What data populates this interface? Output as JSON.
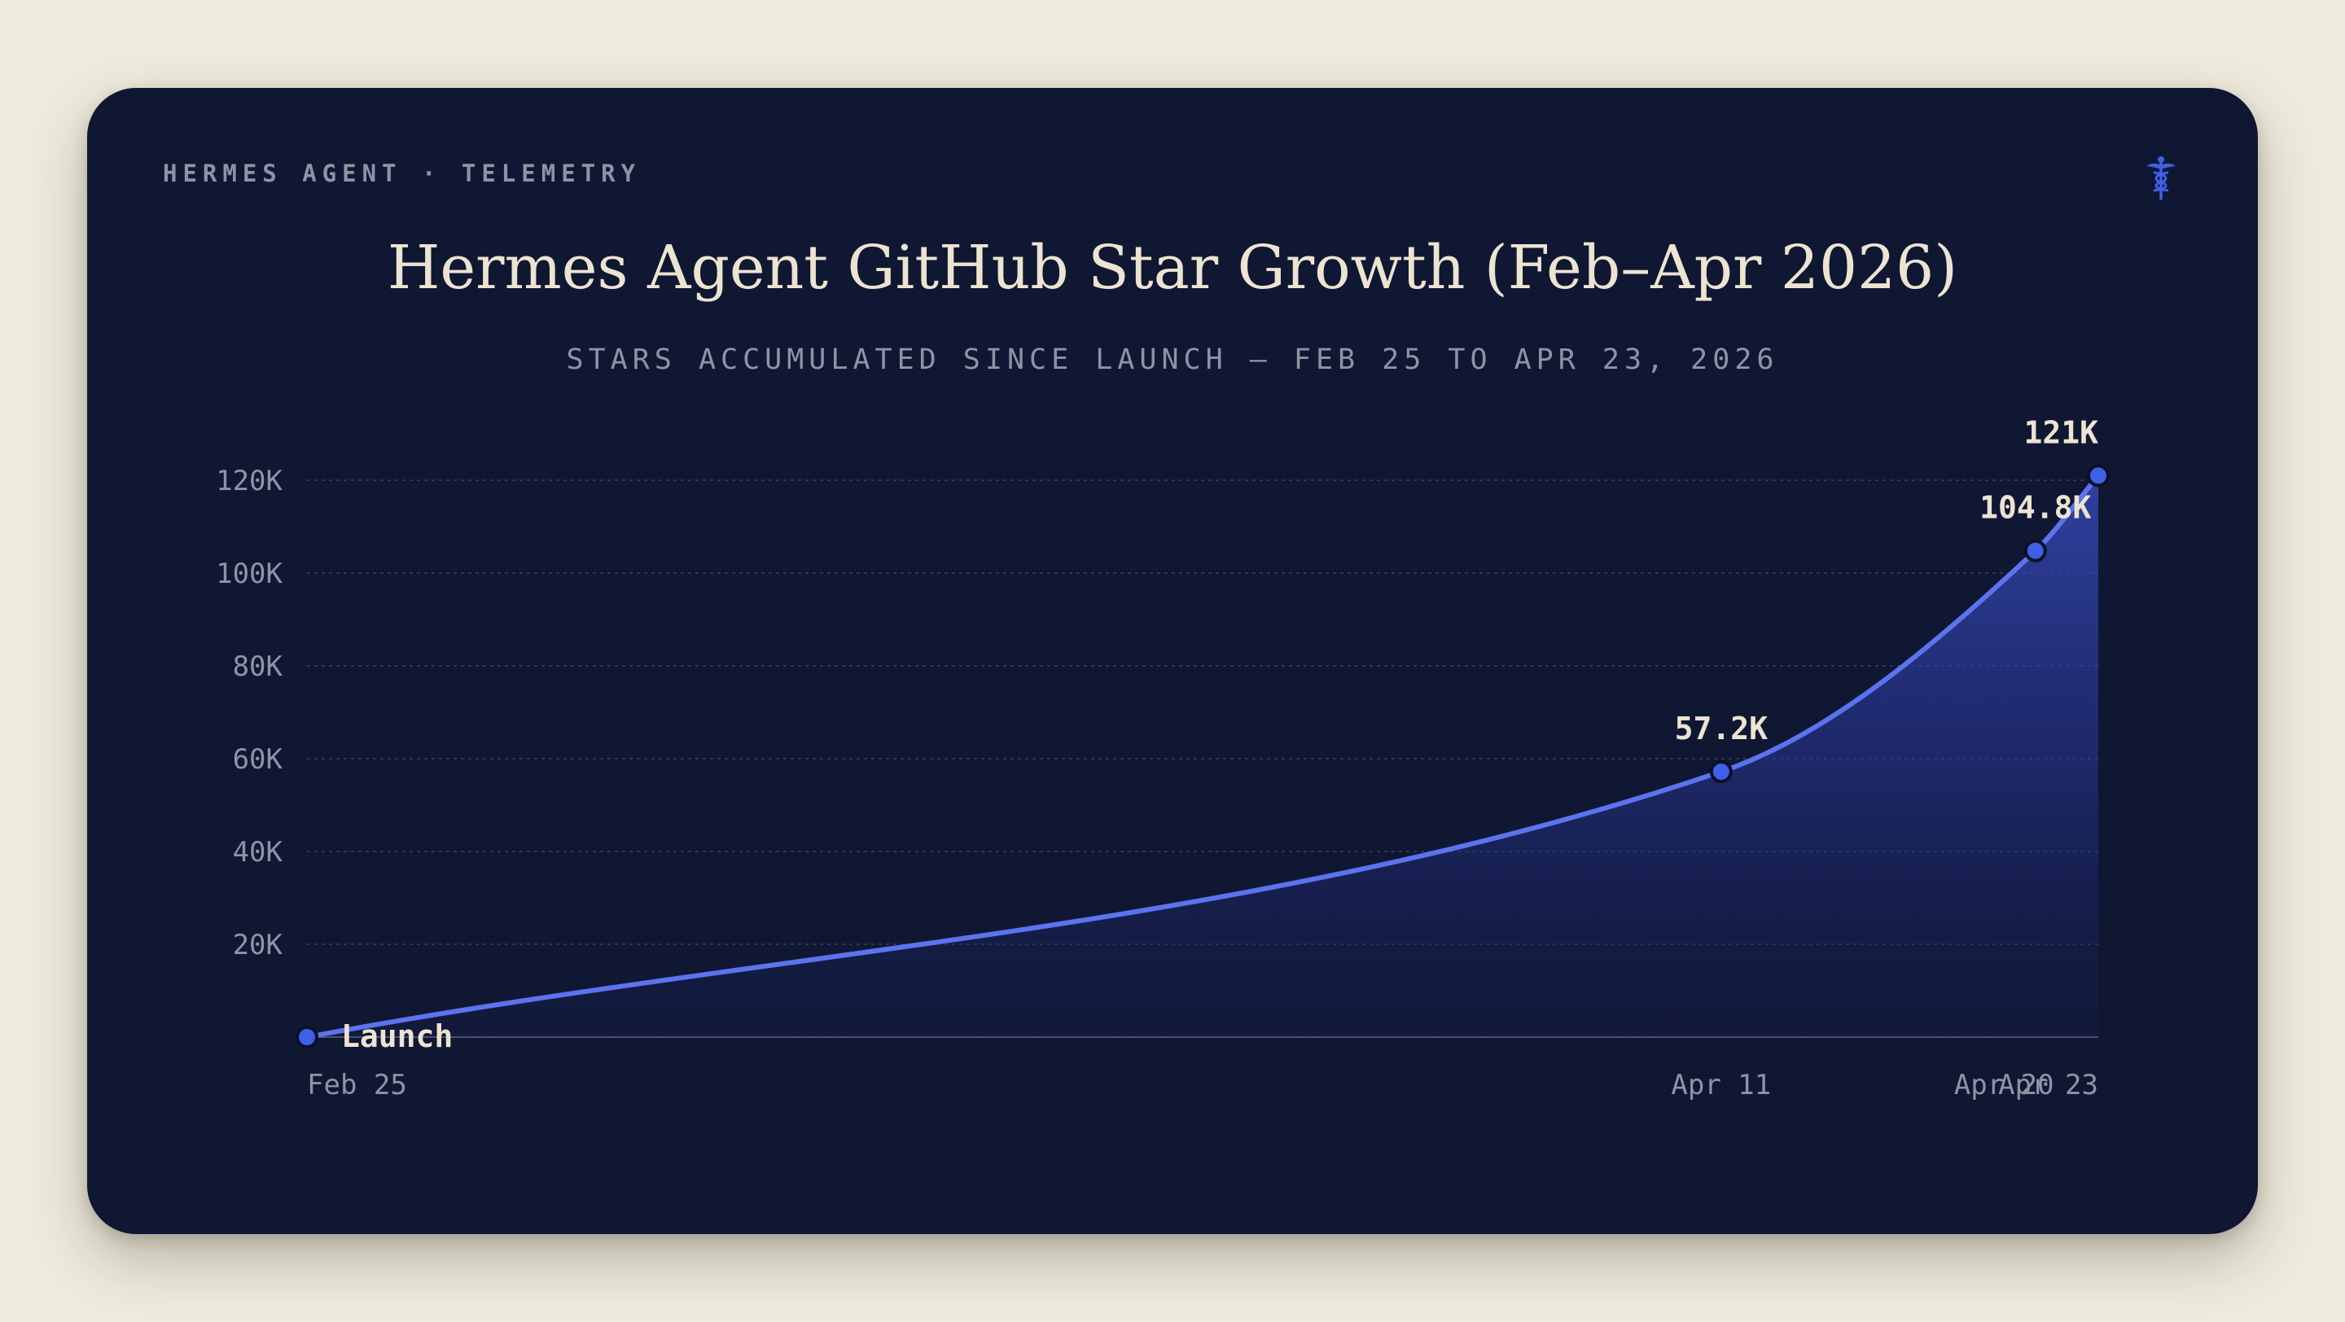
{
  "header": {
    "eyebrow": "HERMES AGENT · TELEMETRY",
    "logo_icon": "caduceus-icon"
  },
  "colors": {
    "page_background": "#efebdc",
    "card_background": "#101733",
    "line": "#5b73ee",
    "point": "#3f5fe6",
    "title": "#ece4d1",
    "muted": "#8f93a3",
    "grid": "#2d3654"
  },
  "chart_data": {
    "type": "area",
    "title": "Hermes Agent GitHub Star Growth (Feb–Apr 2026)",
    "subtitle": "STARS ACCUMULATED SINCE LAUNCH — FEB 25 TO APR 23, 2026",
    "xlabel": "",
    "ylabel": "",
    "x_range": [
      "2026-02-25",
      "2026-04-23"
    ],
    "ylim": [
      0,
      120000
    ],
    "grid": true,
    "y_ticks": [
      {
        "value": 20000,
        "label": "20K"
      },
      {
        "value": 40000,
        "label": "40K"
      },
      {
        "value": 60000,
        "label": "60K"
      },
      {
        "value": 80000,
        "label": "80K"
      },
      {
        "value": 100000,
        "label": "100K"
      },
      {
        "value": 120000,
        "label": "120K"
      }
    ],
    "x_ticks": [
      {
        "date": "2026-02-25",
        "label": "Feb 25"
      },
      {
        "date": "2026-04-11",
        "label": "Apr 11"
      },
      {
        "date": "2026-04-20",
        "label": "Apr 20"
      },
      {
        "date": "2026-04-23",
        "label": "Apr 23"
      }
    ],
    "series": [
      {
        "points": [
          {
            "date": "2026-02-25",
            "stars": 0,
            "label": "Launch"
          },
          {
            "date": "2026-04-11",
            "stars": 57200,
            "label": "57.2K"
          },
          {
            "date": "2026-04-21",
            "stars": 104800,
            "label": "104.8K"
          },
          {
            "date": "2026-04-23",
            "stars": 121000,
            "label": "121K"
          }
        ]
      }
    ]
  }
}
